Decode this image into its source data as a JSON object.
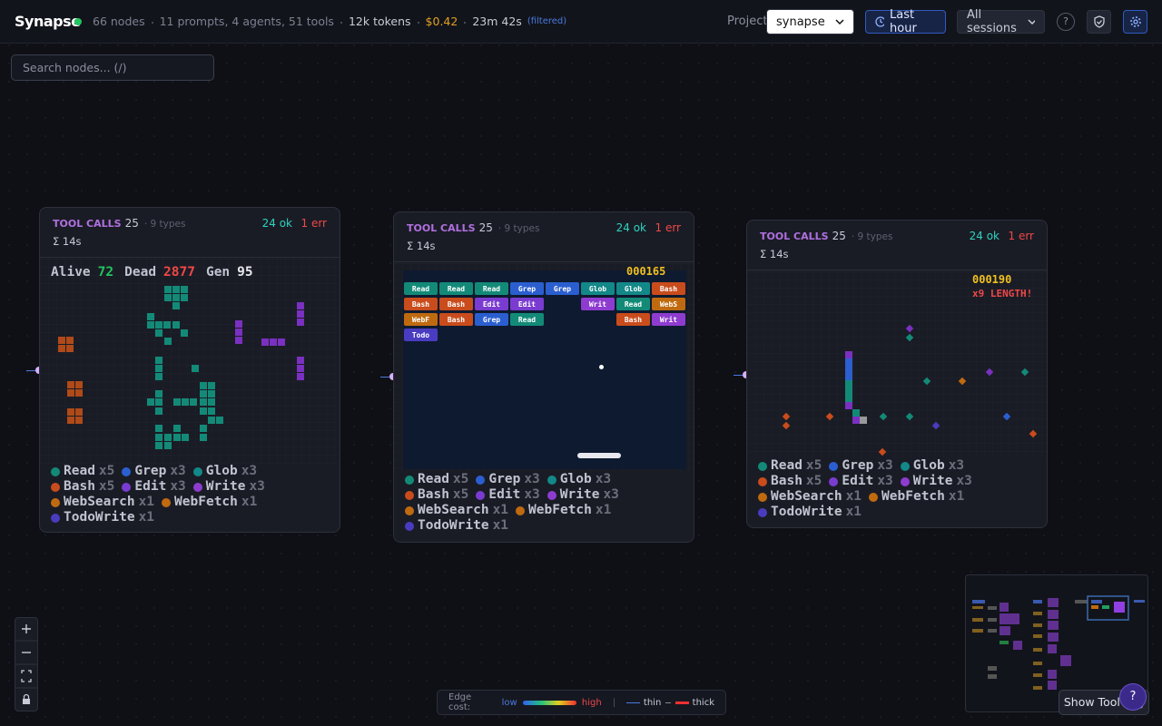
{
  "header": {
    "brand": "Synapse",
    "stats": [
      "66 nodes",
      "11 prompts, 4 agents, 51 tools",
      "12k tokens",
      "$0.42",
      "23m 42s"
    ],
    "filtered": "(filtered)",
    "project_label": "Project",
    "project": "synapse",
    "time_range": "Last hour",
    "sessions": "All sessions",
    "help": "?"
  },
  "search": {
    "placeholder": "Search nodes... (/)"
  },
  "cards": [
    {
      "title": "TOOL CALLS",
      "count": 25,
      "types": "· 9 types",
      "ok": "24 ok",
      "err": "1 err",
      "duration": "Σ 14s",
      "game": {
        "stats": [
          {
            "label": "Alive",
            "value": 72
          },
          {
            "label": "Dead",
            "value": 2877
          },
          {
            "label": "Gen",
            "value": 95
          }
        ]
      },
      "legend": [
        {
          "name": "Read",
          "count": "x5"
        },
        {
          "name": "Grep",
          "count": "x3"
        },
        {
          "name": "Glob",
          "count": "x3"
        },
        {
          "name": "Bash",
          "count": "x5"
        },
        {
          "name": "Edit",
          "count": "x3"
        },
        {
          "name": "Write",
          "count": "x3"
        },
        {
          "name": "WebSearch",
          "count": "x1"
        },
        {
          "name": "WebFetch",
          "count": "x1"
        },
        {
          "name": "TodoWrite",
          "count": "x1"
        }
      ]
    },
    {
      "title": "TOOL CALLS",
      "count": 25,
      "types": "· 9 types",
      "ok": "24 ok",
      "err": "1 err",
      "duration": "Σ 14s",
      "game": {
        "score": "000165",
        "bricks": [
          [
            "Read",
            "Read",
            "Read",
            "Grep",
            "Grep",
            "Glob",
            "Glob",
            "Bash"
          ],
          [
            "Bash",
            "Bash",
            "Edit",
            "Edit",
            null,
            "Writ",
            "Read",
            "WebS"
          ],
          [
            "WebF",
            "Bash",
            "Grep",
            "Read",
            null,
            null,
            "Bash",
            "Writ"
          ],
          [
            "Todo"
          ]
        ]
      },
      "legend": [
        {
          "name": "Read",
          "count": "x5"
        },
        {
          "name": "Grep",
          "count": "x3"
        },
        {
          "name": "Glob",
          "count": "x3"
        },
        {
          "name": "Bash",
          "count": "x5"
        },
        {
          "name": "Edit",
          "count": "x3"
        },
        {
          "name": "Write",
          "count": "x3"
        },
        {
          "name": "WebSearch",
          "count": "x1"
        },
        {
          "name": "WebFetch",
          "count": "x1"
        },
        {
          "name": "TodoWrite",
          "count": "x1"
        }
      ]
    },
    {
      "title": "TOOL CALLS",
      "count": 25,
      "types": "· 9 types",
      "ok": "24 ok",
      "err": "1 err",
      "duration": "Σ 14s",
      "game": {
        "score": "000190",
        "combo": "x9 LENGTH!"
      },
      "legend": [
        {
          "name": "Read",
          "count": "x5"
        },
        {
          "name": "Grep",
          "count": "x3"
        },
        {
          "name": "Glob",
          "count": "x3"
        },
        {
          "name": "Bash",
          "count": "x5"
        },
        {
          "name": "Edit",
          "count": "x3"
        },
        {
          "name": "Write",
          "count": "x3"
        },
        {
          "name": "WebSearch",
          "count": "x1"
        },
        {
          "name": "WebFetch",
          "count": "x1"
        },
        {
          "name": "TodoWrite",
          "count": "x1"
        }
      ]
    }
  ],
  "edge_legend": {
    "label": "Edge cost:",
    "low": "low",
    "high": "high",
    "thin": "thin",
    "thick": "thick"
  },
  "tool_log": {
    "label": "Show Tool Log",
    "help": "?"
  }
}
